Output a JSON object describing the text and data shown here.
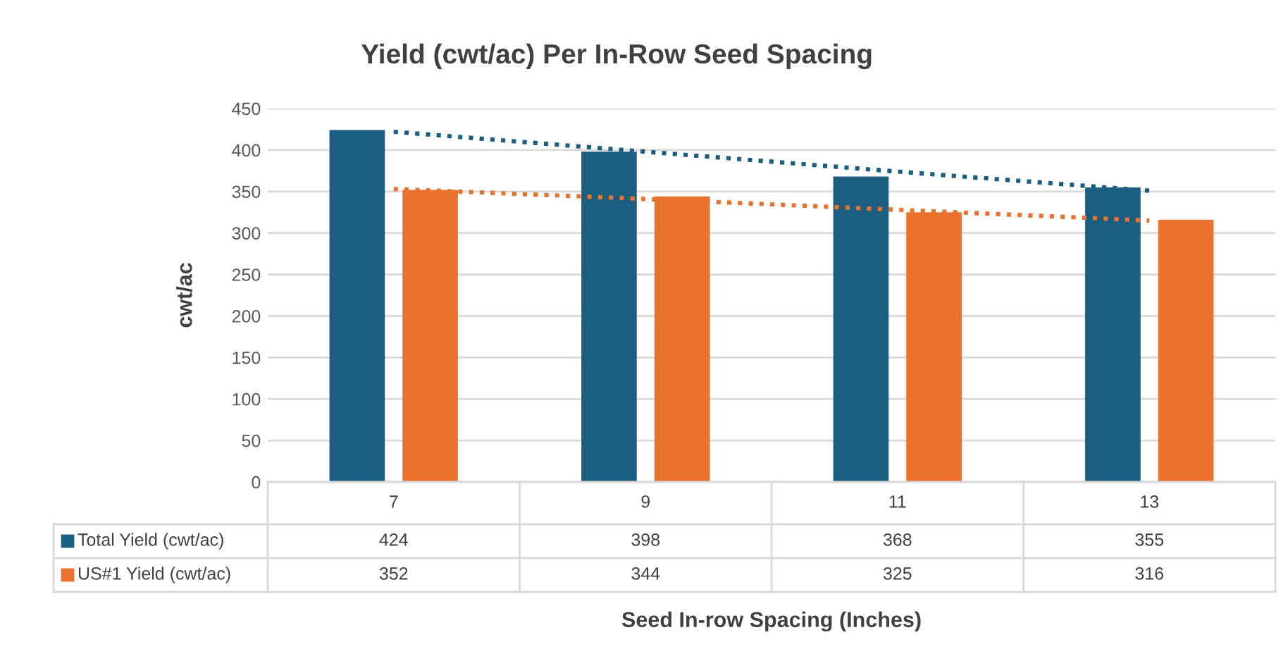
{
  "chart_data": {
    "type": "bar",
    "title": "Yield (cwt/ac) Per In-Row Seed Spacing",
    "xlabel": "Seed In-row Spacing (Inches)",
    "ylabel": "cwt/ac",
    "categories": [
      "7",
      "9",
      "11",
      "13"
    ],
    "series": [
      {
        "name": "Total Yield (cwt/ac)",
        "color": "#1b5e80",
        "values": [
          424,
          398,
          368,
          355
        ],
        "value_labels": [
          "424",
          "398",
          "368",
          "355"
        ]
      },
      {
        "name": "US#1 Yield (cwt/ac)",
        "color": "#e8722e",
        "values": [
          352,
          344,
          325,
          316
        ],
        "value_labels": [
          "352",
          "344",
          "325",
          "316"
        ]
      },
      {
        "type": "line",
        "color": "#1b5e80",
        "line_style": "dotted",
        "values": [
          422,
          398,
          374,
          351
        ]
      },
      {
        "type": "line",
        "color": "#e8722e",
        "line_style": "dotted",
        "values": [
          353,
          341,
          328,
          315
        ]
      }
    ],
    "ylim": [
      0,
      450
    ],
    "yticks": [
      0,
      50,
      100,
      150,
      200,
      250,
      300,
      350,
      400,
      450
    ],
    "grid": "y",
    "legend": "bottom left"
  }
}
